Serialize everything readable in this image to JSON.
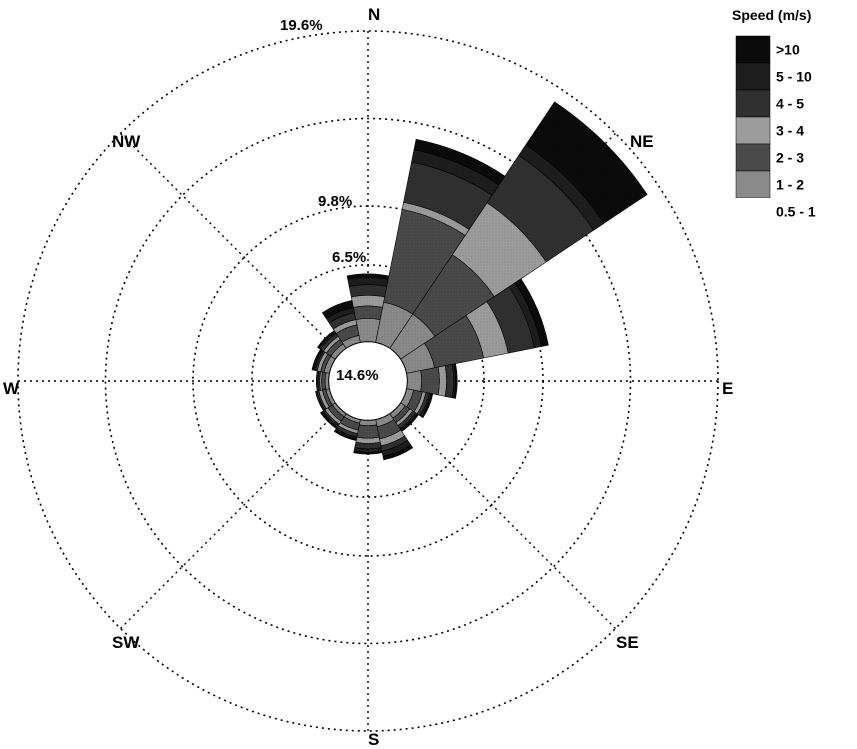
{
  "chart_data": {
    "type": "wind-rose",
    "title": "",
    "legend_title": "Speed (m/s)",
    "legend_position": "top-right",
    "speed_bins": [
      {
        "label": ">10",
        "color": "#0b0b0b"
      },
      {
        "label": "5 - 10",
        "color": "#1e1e1e"
      },
      {
        "label": "4 - 5",
        "color": "#303030"
      },
      {
        "label": "3 - 4",
        "color": "#9c9c9c"
      },
      {
        "label": "2 - 3",
        "color": "#4a4a4a"
      },
      {
        "label": "1 - 2",
        "color": "#8a8a8a"
      },
      {
        "label": "0.5 - 1",
        "color": "#ffffff"
      }
    ],
    "direction_labels": {
      "N": "N",
      "NE": "NE",
      "E": "E",
      "SE": "SE",
      "S": "S",
      "SW": "SW",
      "W": "W",
      "NW": "NW"
    },
    "ring_labels": [
      "6.5%",
      "9.8%",
      "19.6%"
    ],
    "ring_values": [
      6.5,
      9.8,
      14.7,
      19.6
    ],
    "calm_label": "14.6%",
    "calm_value": 14.6,
    "sectors": [
      {
        "direction_deg": 0,
        "cumulative": [
          2.2,
          3.5,
          4.2,
          4.8,
          5.4,
          5.8,
          6.0
        ]
      },
      {
        "direction_deg": 22.5,
        "cumulative": [
          2.2,
          4.5,
          9.8,
          10.2,
          12.5,
          13.2,
          13.8
        ]
      },
      {
        "direction_deg": 45,
        "cumulative": [
          2.2,
          4.5,
          8.5,
          12.0,
          15.2,
          15.9,
          18.8
        ]
      },
      {
        "direction_deg": 67.5,
        "cumulative": [
          2.2,
          3.8,
          6.6,
          8.0,
          9.5,
          9.9,
          10.3
        ]
      },
      {
        "direction_deg": 90,
        "cumulative": [
          2.2,
          3.0,
          4.0,
          4.4,
          4.8,
          4.9,
          5.0
        ]
      },
      {
        "direction_deg": 112.5,
        "cumulative": [
          2.2,
          2.6,
          3.1,
          3.3,
          3.5,
          3.6,
          3.7
        ]
      },
      {
        "direction_deg": 135,
        "cumulative": [
          2.2,
          2.5,
          2.8,
          3.0,
          3.2,
          3.3,
          3.4
        ]
      },
      {
        "direction_deg": 157.5,
        "cumulative": [
          2.2,
          2.6,
          3.3,
          3.7,
          4.0,
          4.3,
          4.5
        ]
      },
      {
        "direction_deg": 180,
        "cumulative": [
          2.2,
          2.5,
          3.2,
          3.5,
          3.8,
          4.0,
          4.1
        ]
      },
      {
        "direction_deg": 202.5,
        "cumulative": [
          2.2,
          2.4,
          2.8,
          3.0,
          3.2,
          3.3,
          3.4
        ]
      },
      {
        "direction_deg": 225,
        "cumulative": [
          2.2,
          2.4,
          2.7,
          2.9,
          3.0,
          3.1,
          3.2
        ]
      },
      {
        "direction_deg": 247.5,
        "cumulative": [
          2.2,
          2.4,
          2.6,
          2.8,
          2.9,
          3.0,
          3.0
        ]
      },
      {
        "direction_deg": 270,
        "cumulative": [
          2.2,
          2.4,
          2.6,
          2.7,
          2.8,
          2.9,
          2.9
        ]
      },
      {
        "direction_deg": 292.5,
        "cumulative": [
          2.2,
          2.5,
          2.7,
          2.9,
          3.0,
          3.1,
          3.2
        ]
      },
      {
        "direction_deg": 315,
        "cumulative": [
          2.2,
          2.5,
          2.8,
          3.0,
          3.2,
          3.3,
          3.4
        ]
      },
      {
        "direction_deg": 337.5,
        "cumulative": [
          2.2,
          2.6,
          3.2,
          3.5,
          3.9,
          4.2,
          4.6
        ]
      }
    ]
  }
}
